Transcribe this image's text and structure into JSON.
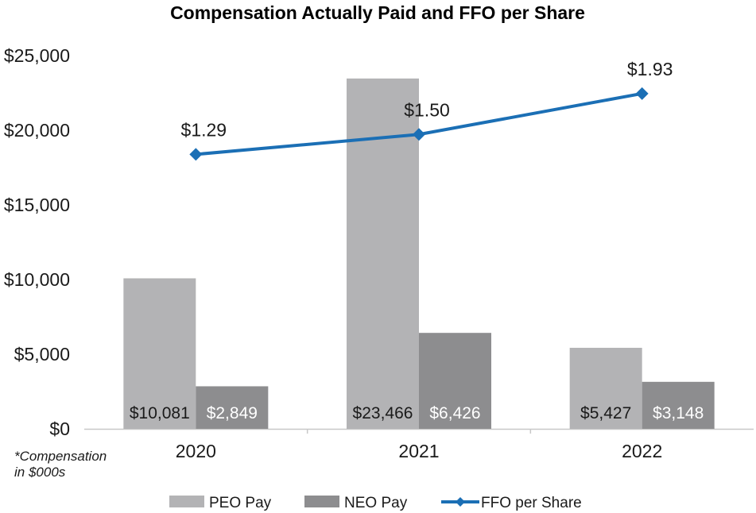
{
  "chart_data": {
    "type": "bar",
    "title": "Compensation Actually Paid and FFO per Share",
    "categories": [
      "2020",
      "2021",
      "2022"
    ],
    "y_ticks": [
      "$0",
      "$5,000",
      "$10,000",
      "$15,000",
      "$20,000",
      "$25,000"
    ],
    "ylim": [
      0,
      25000
    ],
    "series": [
      {
        "name": "PEO Pay",
        "kind": "bar",
        "color": "#b3b3b5",
        "label_color": "#1a1a1a",
        "values": [
          10081,
          23466,
          5427
        ],
        "labels": [
          "$10,081",
          "$23,466",
          "$5,427"
        ]
      },
      {
        "name": "NEO Pay",
        "kind": "bar",
        "color": "#8d8d8f",
        "label_color": "#ffffff",
        "values": [
          2849,
          6426,
          3148
        ],
        "labels": [
          "$2,849",
          "$6,426",
          "$3,148"
        ]
      },
      {
        "name": "FFO per Share",
        "kind": "line",
        "color": "#1b6fb5",
        "axis": "secondary",
        "values": [
          1.29,
          1.5,
          1.93
        ],
        "labels": [
          "$1.29",
          "$1.50",
          "$1.93"
        ]
      }
    ],
    "secondary_ylim": [
      -1.6,
      2.33
    ],
    "note": [
      "*Compensation",
      "in $000s"
    ],
    "legend_position": "bottom"
  }
}
